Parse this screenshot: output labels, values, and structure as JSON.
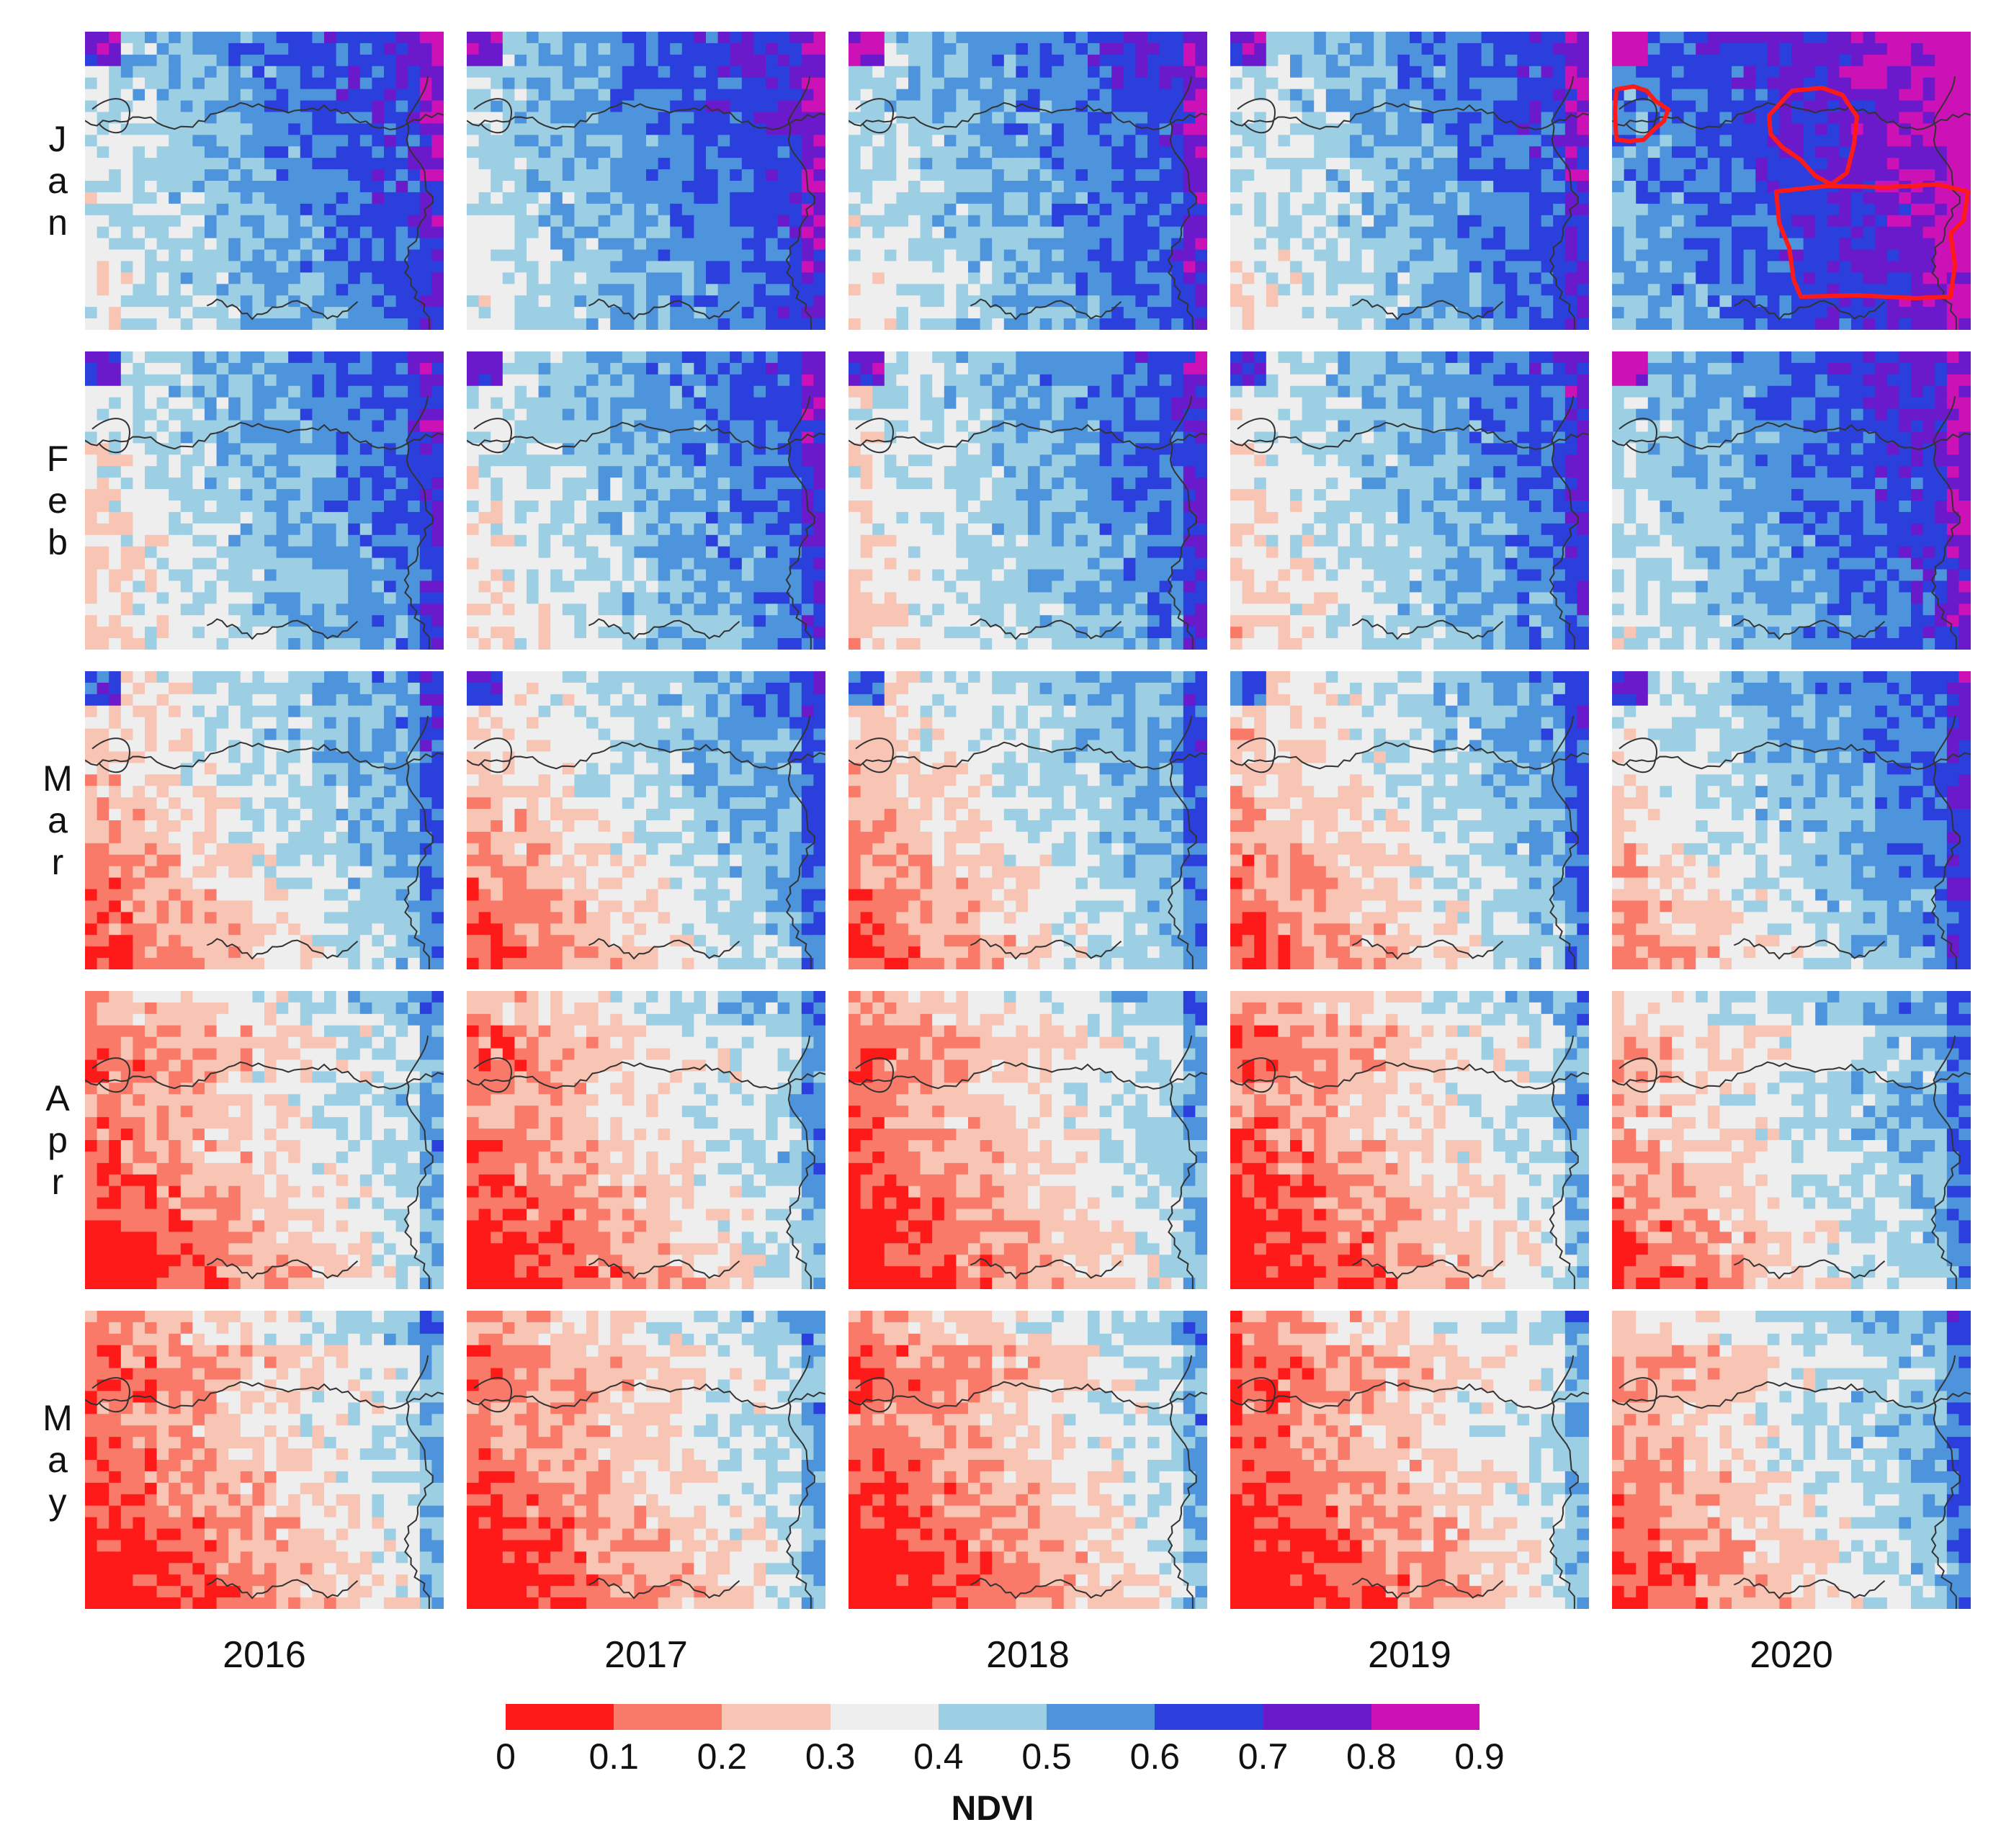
{
  "months": [
    "Jan",
    "Feb",
    "Mar",
    "Apr",
    "May"
  ],
  "years": [
    "2016",
    "2017",
    "2018",
    "2019",
    "2020"
  ],
  "legend": {
    "title": "NDVI",
    "ticks": [
      "0",
      "0.1",
      "0.2",
      "0.3",
      "0.4",
      "0.5",
      "0.6",
      "0.7",
      "0.8",
      "0.9"
    ],
    "colors": [
      "#ff1a1a",
      "#fa7a6a",
      "#f8c4b4",
      "#eeeeee",
      "#9ccfe3",
      "#4d94dc",
      "#2a3fdc",
      "#6a1acb",
      "#cc11b6"
    ]
  },
  "highlight_color": "#ff1a1a",
  "highlighted_panel": {
    "month": "Jan",
    "year": "2020"
  }
}
